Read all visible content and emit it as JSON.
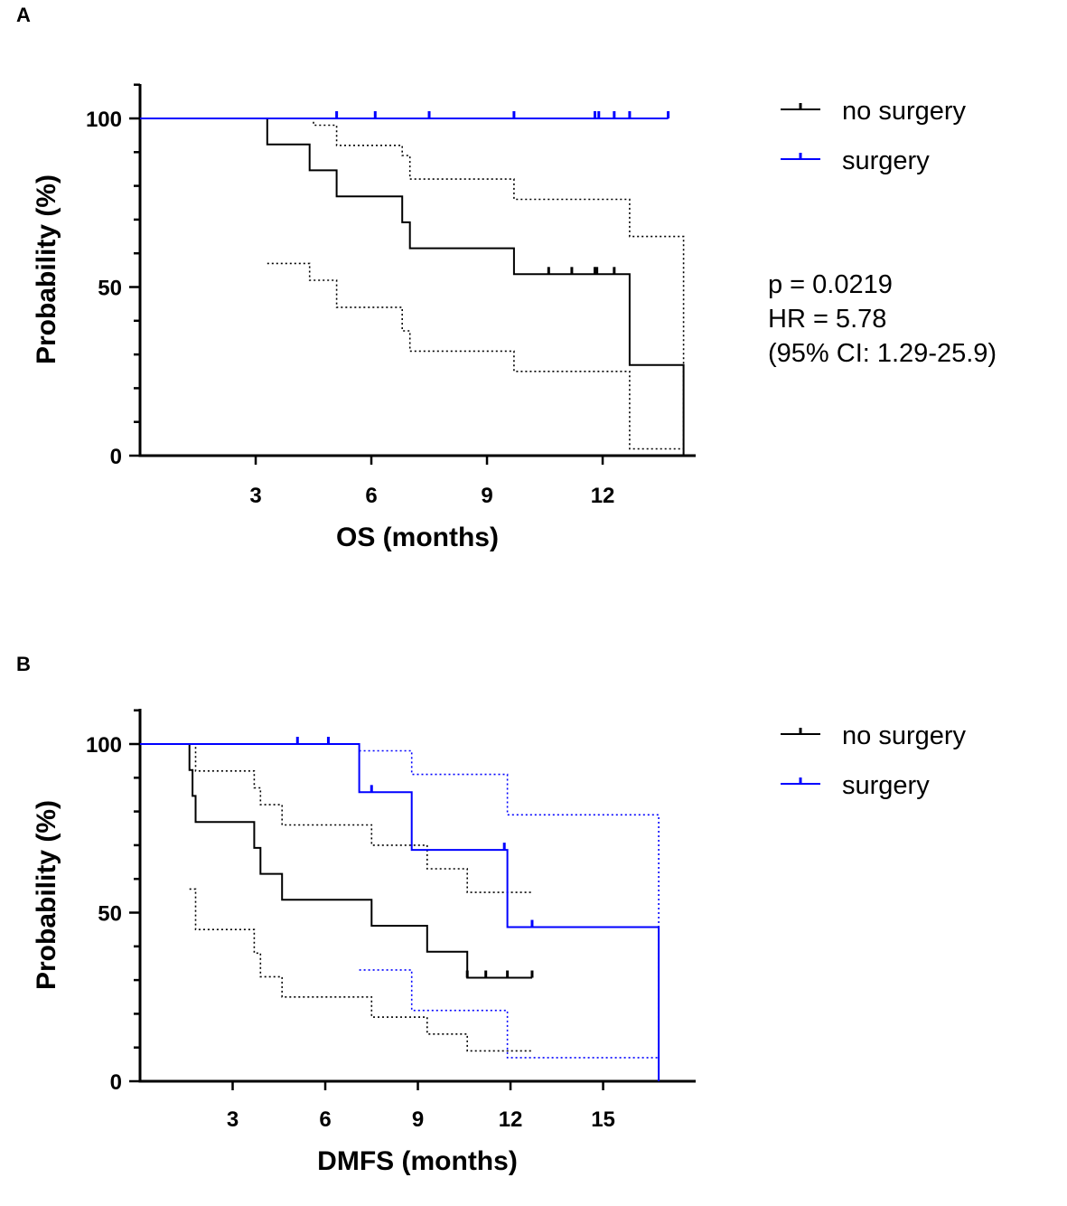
{
  "chart_data": [
    {
      "panel": "A",
      "type": "line",
      "subtype": "kaplan-meier",
      "title": "",
      "xlabel": "OS (months)",
      "ylabel": "Probability (%)",
      "xlim": [
        0,
        14.4
      ],
      "ylim": [
        0,
        110
      ],
      "xticks": [
        3,
        6,
        9,
        12
      ],
      "yticks": [
        0,
        50,
        100
      ],
      "grid": false,
      "legend_position": "right",
      "legend": [
        "no surgery",
        "surgery"
      ],
      "stats": [
        "p = 0.0219",
        "HR = 5.78",
        "(95% CI: 1.29-25.9)"
      ],
      "series": [
        {
          "name": "no surgery",
          "color": "#000000",
          "steps": [
            [
              0,
              100
            ],
            [
              3.3,
              100
            ],
            [
              3.3,
              92.3
            ],
            [
              4.4,
              92.3
            ],
            [
              4.4,
              84.6
            ],
            [
              5.1,
              84.6
            ],
            [
              5.1,
              76.9
            ],
            [
              6.8,
              76.9
            ],
            [
              6.8,
              69.2
            ],
            [
              7.0,
              69.2
            ],
            [
              7.0,
              61.5
            ],
            [
              9.7,
              61.5
            ],
            [
              9.7,
              53.8
            ],
            [
              12.7,
              53.8
            ],
            [
              12.7,
              26.9
            ],
            [
              14.1,
              26.9
            ],
            [
              14.1,
              0
            ]
          ],
          "censored": [
            [
              10.6,
              53.8
            ],
            [
              11.2,
              53.8
            ],
            [
              11.8,
              53.8
            ],
            [
              11.85,
              53.8
            ],
            [
              12.3,
              53.8
            ]
          ],
          "ci_upper": [
            [
              3.3,
              100
            ],
            [
              4.5,
              100
            ],
            [
              4.5,
              98
            ],
            [
              5.1,
              98
            ],
            [
              5.1,
              92
            ],
            [
              6.8,
              92
            ],
            [
              6.8,
              89
            ],
            [
              7.0,
              89
            ],
            [
              7.0,
              82
            ],
            [
              9.7,
              82
            ],
            [
              9.7,
              76
            ],
            [
              12.7,
              76
            ],
            [
              12.7,
              65
            ],
            [
              14.1,
              65
            ],
            [
              14.1,
              0
            ]
          ],
          "ci_lower": [
            [
              3.3,
              57
            ],
            [
              4.4,
              57
            ],
            [
              4.4,
              52
            ],
            [
              5.1,
              52
            ],
            [
              5.1,
              44
            ],
            [
              6.8,
              44
            ],
            [
              6.8,
              37
            ],
            [
              7.0,
              37
            ],
            [
              7.0,
              31
            ],
            [
              9.7,
              31
            ],
            [
              9.7,
              25
            ],
            [
              12.7,
              25
            ],
            [
              12.7,
              2
            ],
            [
              14.1,
              2
            ]
          ]
        },
        {
          "name": "surgery",
          "color": "#0000ff",
          "steps": [
            [
              0,
              100
            ],
            [
              13.7,
              100
            ]
          ],
          "censored": [
            [
              5.1,
              100
            ],
            [
              6.1,
              100
            ],
            [
              7.5,
              100
            ],
            [
              9.7,
              100
            ],
            [
              11.8,
              100
            ],
            [
              11.9,
              100
            ],
            [
              12.3,
              100
            ],
            [
              12.7,
              100
            ],
            [
              13.7,
              100
            ]
          ],
          "ci_upper": [],
          "ci_lower": []
        }
      ]
    },
    {
      "panel": "B",
      "type": "line",
      "subtype": "kaplan-meier",
      "title": "",
      "xlabel": "DMFS (months)",
      "ylabel": "Probability (%)",
      "xlim": [
        0,
        18
      ],
      "ylim": [
        0,
        110
      ],
      "xticks": [
        3,
        6,
        9,
        12,
        15
      ],
      "yticks": [
        0,
        50,
        100
      ],
      "grid": false,
      "legend_position": "right",
      "legend": [
        "no surgery",
        "surgery"
      ],
      "stats": [],
      "series": [
        {
          "name": "no surgery",
          "color": "#000000",
          "steps": [
            [
              0,
              100
            ],
            [
              1.6,
              100
            ],
            [
              1.6,
              92.3
            ],
            [
              1.7,
              92.3
            ],
            [
              1.7,
              84.6
            ],
            [
              1.8,
              84.6
            ],
            [
              1.8,
              76.9
            ],
            [
              3.7,
              76.9
            ],
            [
              3.7,
              69.2
            ],
            [
              3.9,
              69.2
            ],
            [
              3.9,
              61.5
            ],
            [
              4.6,
              61.5
            ],
            [
              4.6,
              53.8
            ],
            [
              7.5,
              53.8
            ],
            [
              7.5,
              46.1
            ],
            [
              9.3,
              46.1
            ],
            [
              9.3,
              38.4
            ],
            [
              10.6,
              38.4
            ],
            [
              10.6,
              30.7
            ],
            [
              12.7,
              30.7
            ]
          ],
          "censored": [
            [
              10.6,
              30.7
            ],
            [
              11.2,
              30.7
            ],
            [
              11.9,
              30.7
            ],
            [
              12.7,
              30.7
            ]
          ],
          "ci_upper": [
            [
              1.6,
              100
            ],
            [
              1.8,
              100
            ],
            [
              1.8,
              92
            ],
            [
              3.7,
              92
            ],
            [
              3.7,
              87
            ],
            [
              3.9,
              87
            ],
            [
              3.9,
              82
            ],
            [
              4.6,
              82
            ],
            [
              4.6,
              76
            ],
            [
              7.5,
              76
            ],
            [
              7.5,
              70
            ],
            [
              9.3,
              70
            ],
            [
              9.3,
              63
            ],
            [
              10.6,
              63
            ],
            [
              10.6,
              56
            ],
            [
              12.7,
              56
            ]
          ],
          "ci_lower": [
            [
              1.6,
              57
            ],
            [
              1.8,
              57
            ],
            [
              1.8,
              45
            ],
            [
              3.7,
              45
            ],
            [
              3.7,
              38
            ],
            [
              3.9,
              38
            ],
            [
              3.9,
              31
            ],
            [
              4.6,
              31
            ],
            [
              4.6,
              25
            ],
            [
              7.5,
              25
            ],
            [
              7.5,
              19
            ],
            [
              9.3,
              19
            ],
            [
              9.3,
              14
            ],
            [
              10.6,
              14
            ],
            [
              10.6,
              9
            ],
            [
              12.7,
              9
            ]
          ]
        },
        {
          "name": "surgery",
          "color": "#0000ff",
          "steps": [
            [
              0,
              100
            ],
            [
              7.1,
              100
            ],
            [
              7.1,
              85.7
            ],
            [
              8.8,
              85.7
            ],
            [
              8.8,
              68.6
            ],
            [
              11.9,
              68.6
            ],
            [
              11.9,
              45.7
            ],
            [
              16.8,
              45.7
            ],
            [
              16.8,
              0
            ]
          ],
          "censored": [
            [
              5.1,
              100
            ],
            [
              6.1,
              100
            ],
            [
              7.5,
              85.7
            ],
            [
              11.8,
              68.6
            ],
            [
              12.7,
              45.7
            ]
          ],
          "ci_upper": [
            [
              7.1,
              98
            ],
            [
              8.8,
              98
            ],
            [
              8.8,
              91
            ],
            [
              11.9,
              91
            ],
            [
              11.9,
              79
            ],
            [
              16.8,
              79
            ],
            [
              16.8,
              0
            ]
          ],
          "ci_lower": [
            [
              7.1,
              33
            ],
            [
              8.8,
              33
            ],
            [
              8.8,
              21
            ],
            [
              11.9,
              21
            ],
            [
              11.9,
              7
            ],
            [
              16.8,
              7
            ]
          ]
        }
      ]
    }
  ]
}
